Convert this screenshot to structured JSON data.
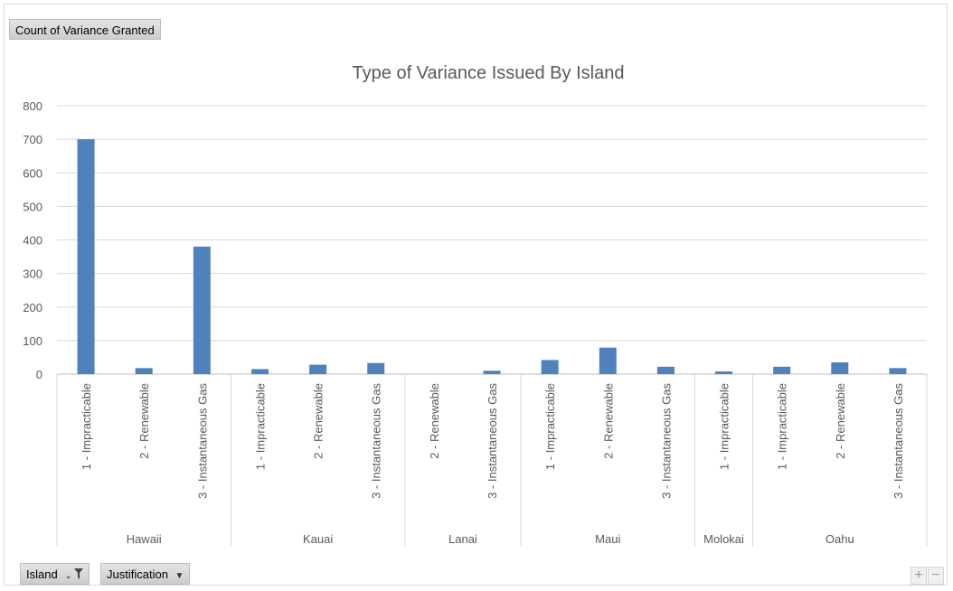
{
  "pivot": {
    "value_field": "Count of Variance Granted",
    "axis_fields": [
      {
        "label": "Island",
        "icon": "filter-dropdown-icon"
      },
      {
        "label": "Justification",
        "icon": "dropdown-arrow-icon"
      }
    ],
    "zoom_in": "+",
    "zoom_out": "−"
  },
  "chart_data": {
    "type": "bar",
    "title": "Type of Variance Issued By Island",
    "xlabel": "",
    "ylabel": "",
    "ylim": [
      0,
      800
    ],
    "yticks": [
      0,
      100,
      200,
      300,
      400,
      500,
      600,
      700,
      800
    ],
    "grid": true,
    "bar_color": "#4f81bd",
    "groups": [
      {
        "name": "Hawaii",
        "categories": [
          "1 - Impracticable",
          "2 - Renewable",
          "3 - Instantaneous Gas"
        ],
        "values": [
          700,
          18,
          380
        ]
      },
      {
        "name": "Kauai",
        "categories": [
          "1 - Impracticable",
          "2 - Renewable",
          "3 - Instantaneous Gas"
        ],
        "values": [
          15,
          28,
          33
        ]
      },
      {
        "name": "Lanai",
        "categories": [
          "2 - Renewable",
          "3 - Instantaneous Gas"
        ],
        "values": [
          0,
          10
        ]
      },
      {
        "name": "Maui",
        "categories": [
          "1 - Impracticable",
          "2 - Renewable",
          "3 - Instantaneous Gas"
        ],
        "values": [
          42,
          79,
          22
        ]
      },
      {
        "name": "Molokai",
        "categories": [
          "1 - Impracticable"
        ],
        "values": [
          8
        ]
      },
      {
        "name": "Oahu",
        "categories": [
          "1 - Impracticable",
          "2 - Renewable",
          "3 - Instantaneous Gas"
        ],
        "values": [
          22,
          35,
          18
        ]
      }
    ]
  }
}
